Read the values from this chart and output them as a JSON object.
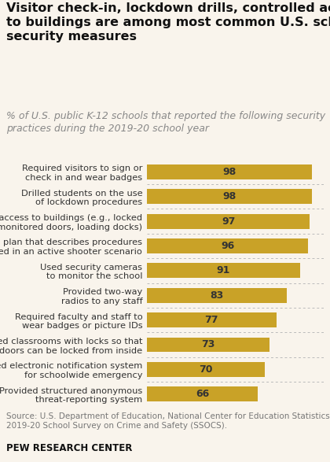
{
  "title": "Visitor check-in, lockdown drills, controlled access\nto buildings are among most common U.S. school\nsecurity measures",
  "subtitle": "% of U.S. public K-12 schools that reported the following security\npractices during the 2019-20 school year",
  "source": "Source: U.S. Department of Education, National Center for Education Statistics,\n2019-20 School Survey on Crime and Safety (SSOCS).",
  "footer": "PEW RESEARCH CENTER",
  "categories": [
    "Required visitors to sign or\ncheck in and wear badges",
    "Drilled students on the use\nof lockdown procedures",
    "Controlled access to buildings (e.g., locked\nor monitored doors, loading docks)",
    "Had a written plan that describes procedures\nto be performed in an active shooter scenario",
    "Used security cameras\nto monitor the school",
    "Provided two-way\nradios to any staff",
    "Required faculty and staff to\nwear badges or picture IDs",
    "Equipped classrooms with locks so that\ndoors can be locked from inside",
    "Provided electronic notification system\nfor schoolwide emergency",
    "Provided structured anonymous\nthreat-reporting system"
  ],
  "values": [
    98,
    98,
    97,
    96,
    91,
    83,
    77,
    73,
    70,
    66
  ],
  "bar_color": "#C9A227",
  "label_color": "#333333",
  "value_color": "#333333",
  "background_color": "#f9f4ec",
  "xlim": [
    0,
    105
  ],
  "title_fontsize": 11.5,
  "subtitle_fontsize": 9.0,
  "label_fontsize": 8.2,
  "value_fontsize": 9.0,
  "source_fontsize": 7.5,
  "footer_fontsize": 8.5
}
